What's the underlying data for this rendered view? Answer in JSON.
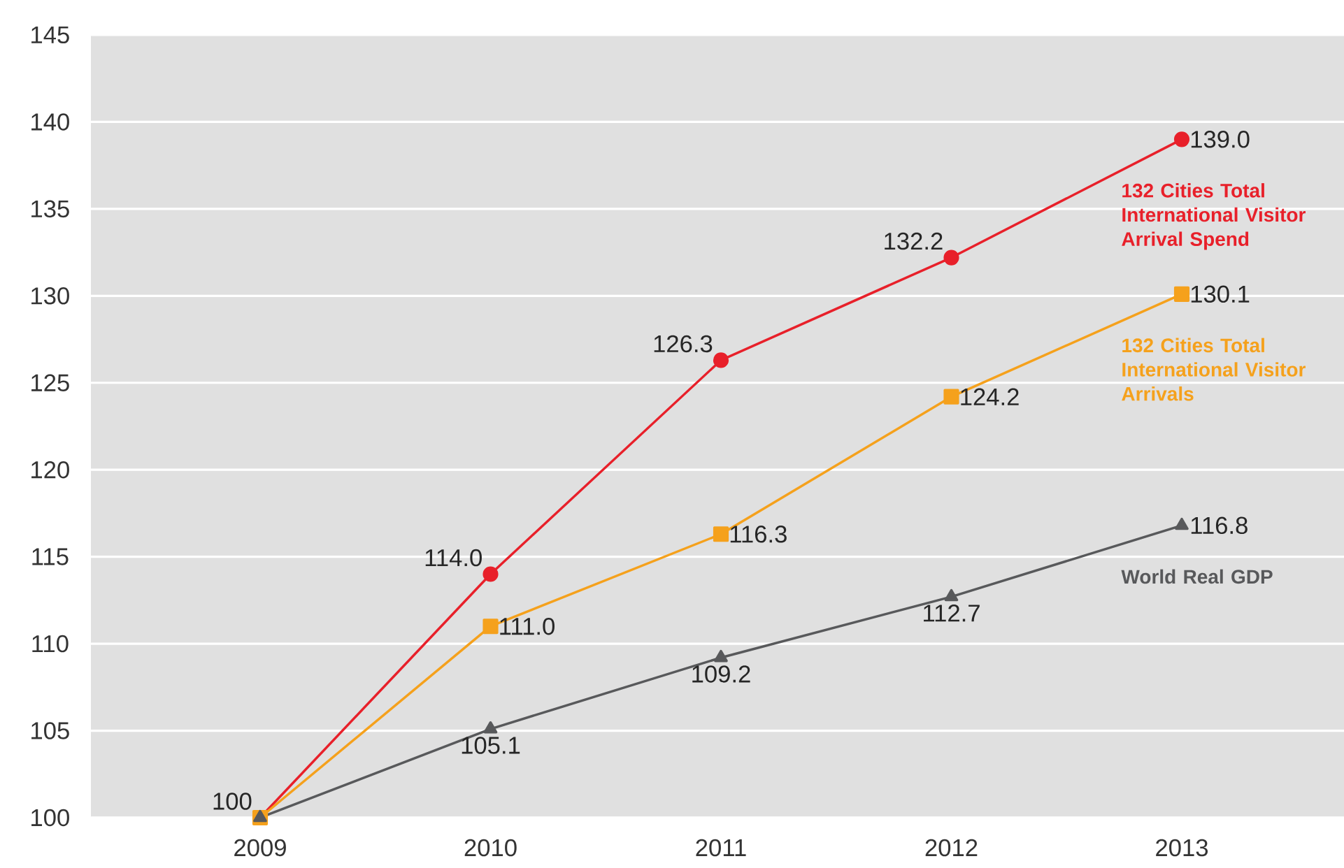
{
  "chart_data": {
    "type": "line",
    "categories": [
      "2009",
      "2010",
      "2011",
      "2012",
      "2013"
    ],
    "ylim": [
      100,
      145
    ],
    "yticks": [
      100,
      105,
      110,
      115,
      120,
      125,
      130,
      135,
      140,
      145
    ],
    "grid": "y",
    "series": [
      {
        "name": "132 Cities Total International Visitor Arrival Spend",
        "color": "#e8202a",
        "marker": "circle",
        "values": [
          100,
          114.0,
          126.3,
          132.2,
          139.0
        ],
        "value_labels": [
          "100",
          "114.0",
          "126.3",
          "132.2",
          "139.0"
        ]
      },
      {
        "name": "132 Cities Total International Visitor Arrivals",
        "color": "#f5a11c",
        "marker": "square",
        "values": [
          100,
          111.0,
          116.3,
          124.2,
          130.1
        ],
        "value_labels": [
          null,
          "111.0",
          "116.3",
          "124.2",
          "130.1"
        ]
      },
      {
        "name": "World Real GDP",
        "color": "#58595b",
        "marker": "triangle",
        "values": [
          100,
          105.1,
          109.2,
          112.7,
          116.8
        ],
        "value_labels": [
          null,
          "105.1",
          "109.2",
          "112.7",
          "116.8"
        ]
      }
    ]
  }
}
